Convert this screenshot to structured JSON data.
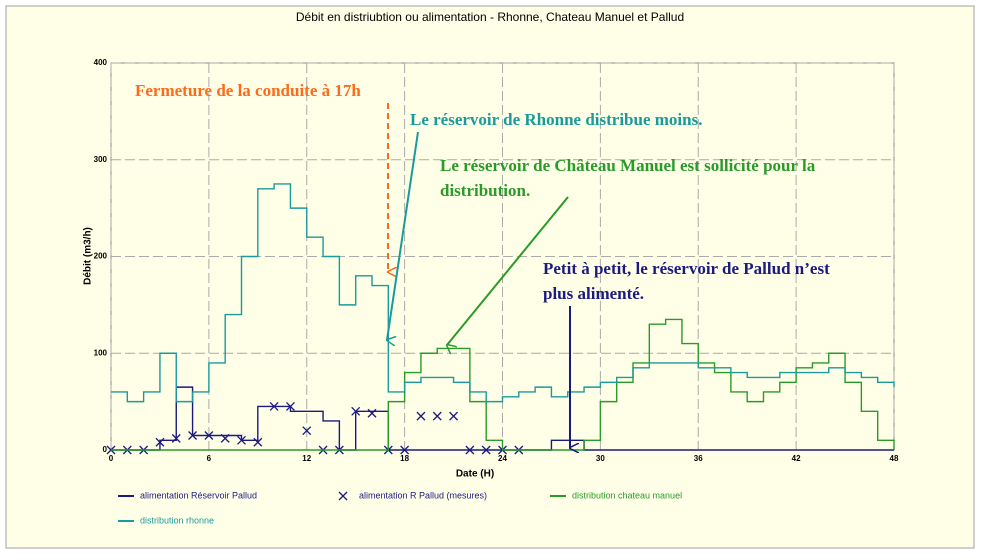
{
  "chart_data": {
    "type": "step",
    "title": "Débit en distriubtion ou alimentation - Rhonne, Chateau Manuel et Pallud",
    "x_label": "Date   (H)",
    "y_label": "Débit    (m3/h)",
    "x": [
      0,
      1,
      2,
      3,
      4,
      5,
      6,
      7,
      8,
      9,
      10,
      11,
      12,
      13,
      14,
      15,
      16,
      17,
      18,
      19,
      20,
      21,
      22,
      23,
      24,
      25,
      26,
      27,
      28,
      29,
      30,
      31,
      32,
      33,
      34,
      35,
      36,
      37,
      38,
      39,
      40,
      41,
      42,
      43,
      44,
      45,
      46,
      47,
      48
    ],
    "xlim": [
      0,
      48
    ],
    "xticks": [
      0,
      6,
      12,
      18,
      24,
      30,
      36,
      42,
      48
    ],
    "ylim": [
      0,
      400
    ],
    "yticks": [
      0,
      100,
      200,
      300,
      400
    ],
    "grid": true,
    "series": [
      {
        "name": "alimentation Réservoir Pallud",
        "color": "#1a1a80",
        "style": "line",
        "values": [
          0,
          0,
          0,
          10,
          65,
          15,
          15,
          15,
          10,
          45,
          45,
          40,
          40,
          30,
          0,
          40,
          40,
          0,
          0,
          0,
          0,
          0,
          0,
          0,
          0,
          0,
          0,
          10,
          10,
          0,
          0,
          0,
          0,
          0,
          0,
          0,
          0,
          0,
          0,
          0,
          0,
          0,
          0,
          0,
          0,
          0,
          0,
          0,
          0
        ]
      },
      {
        "name": "alimentation R Pallud (mesures)",
        "color": "#1a1a80",
        "style": "markers",
        "values": [
          0,
          0,
          0,
          8,
          12,
          15,
          15,
          12,
          10,
          8,
          45,
          45,
          20,
          0,
          0,
          40,
          38,
          0,
          0,
          35,
          35,
          35,
          0,
          0,
          0,
          0,
          null,
          null,
          null,
          null,
          null,
          null,
          null,
          null,
          null,
          null,
          null,
          null,
          null,
          null,
          null,
          null,
          null,
          null,
          null,
          null,
          null,
          null,
          null
        ]
      },
      {
        "name": "distribution chateau manuel",
        "color": "#2a9a2a",
        "style": "line",
        "values": [
          0,
          0,
          0,
          0,
          0,
          0,
          0,
          0,
          0,
          0,
          0,
          0,
          0,
          0,
          0,
          0,
          0,
          50,
          80,
          100,
          105,
          105,
          50,
          10,
          0,
          0,
          0,
          0,
          0,
          10,
          50,
          70,
          90,
          130,
          135,
          110,
          90,
          80,
          60,
          50,
          60,
          70,
          85,
          90,
          100,
          70,
          40,
          10,
          0
        ]
      },
      {
        "name": "distribution rhonne",
        "color": "#1a9a9a",
        "style": "line",
        "values": [
          60,
          50,
          60,
          100,
          50,
          60,
          90,
          140,
          200,
          270,
          275,
          250,
          220,
          200,
          150,
          180,
          170,
          60,
          70,
          75,
          75,
          70,
          60,
          50,
          55,
          60,
          65,
          55,
          60,
          65,
          70,
          75,
          85,
          90,
          90,
          90,
          85,
          85,
          80,
          75,
          75,
          80,
          80,
          80,
          85,
          80,
          75,
          70,
          65
        ]
      }
    ],
    "annotations": [
      {
        "lines": [
          "Fermeture de la conduite à 17h"
        ],
        "color": "#ff6a1a"
      },
      {
        "lines": [
          "Le réservoir de Rhonne distribue moins."
        ],
        "color": "#1a9a9a"
      },
      {
        "lines": [
          "Le réservoir de Château Manuel est sollicité pour la",
          "distribution."
        ],
        "color": "#2a9a2a"
      },
      {
        "lines": [
          "Petit à petit, le réservoir de Pallud n’est",
          "plus alimenté."
        ],
        "color": "#1a1a80"
      }
    ]
  }
}
